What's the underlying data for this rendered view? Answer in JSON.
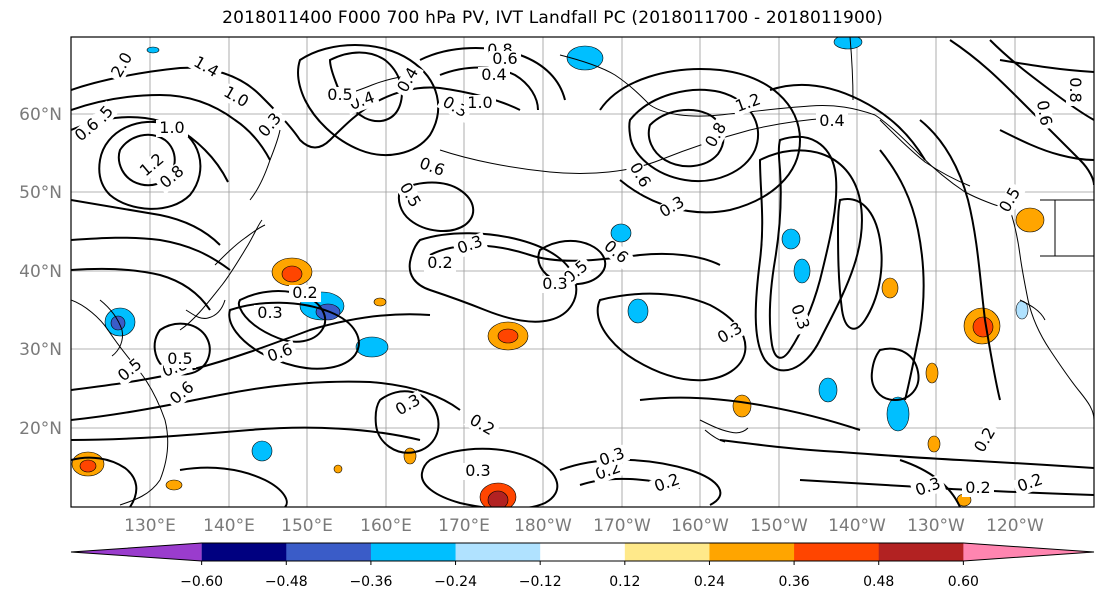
{
  "title": "2018011400 F000 700 hPa PV, IVT Landfall PC (2018011700 - 2018011900)",
  "map": {
    "lat_labels": [
      "60°N",
      "50°N",
      "40°N",
      "30°N",
      "20°N"
    ],
    "lon_labels": [
      "130°E",
      "140°E",
      "150°E",
      "160°E",
      "170°E",
      "180°W",
      "170°W",
      "160°W",
      "150°W",
      "140°W",
      "130°W",
      "120°W"
    ],
    "contour_labels": [
      "2.0",
      "1.4",
      "1.0",
      "0.5",
      "0.6",
      "1.0",
      "1.2",
      "0.8",
      "0.3",
      "0.4",
      "0.5",
      "0.3",
      "0.4",
      "0.6",
      "0.5",
      "0.3",
      "0.2",
      "0.5",
      "0.6",
      "0.3",
      "0.3",
      "0.6",
      "0.2",
      "0.3",
      "0.2",
      "0.3",
      "0.3",
      "0.2",
      "0.3",
      "0.2",
      "0.6",
      "0.8",
      "0.5",
      "0.5",
      "0.8",
      "0.6",
      "0.4",
      "1.0",
      "1.2",
      "0.8",
      "0.4",
      "0.3",
      "0.6",
      "0.3",
      "0.2",
      "0.3",
      "0.2",
      "0.2",
      "0.5",
      "0.8",
      "0.6"
    ]
  },
  "colorbar": {
    "colors": [
      "#9a3ccd",
      "#000080",
      "#3a5cc8",
      "#00bfff",
      "#b0e2ff",
      "#ffffff",
      "#ffe98a",
      "#ffa500",
      "#ff4500",
      "#b22222",
      "#ff85b0"
    ],
    "tick_labels": [
      "−0.60",
      "−0.48",
      "−0.36",
      "−0.24",
      "−0.12",
      "0.12",
      "0.24",
      "0.36",
      "0.48",
      "0.60"
    ]
  }
}
